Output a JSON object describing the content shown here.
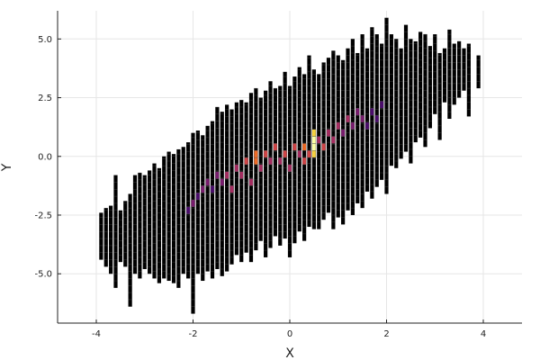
{
  "chart_data": {
    "type": "heatmap",
    "subtype": "2d-histogram",
    "title": "",
    "xlabel": "X",
    "ylabel": "Y",
    "xlim": [
      -4.8,
      4.8
    ],
    "ylim": [
      -7.1,
      6.2
    ],
    "x_ticks": [
      -4,
      -2,
      0,
      2,
      4
    ],
    "x_tick_labels": [
      "-4",
      "-2",
      "0",
      "2",
      "4"
    ],
    "y_ticks": [
      -5.0,
      -2.5,
      0.0,
      2.5,
      5.0
    ],
    "y_tick_labels": [
      "-5.0",
      "-2.5",
      "0.0",
      "2.5",
      "5.0"
    ],
    "grid": true,
    "legend": "none",
    "colormap": "inferno",
    "colormap_stops": [
      "#000004",
      "#1b0c41",
      "#4a0c6b",
      "#781c6d",
      "#a52c60",
      "#cf4446",
      "#ed6925",
      "#fb9b06",
      "#f7d13d",
      "#fcffa4"
    ],
    "bin_color": "#000000",
    "cell_border_color": "#555555",
    "x_bin_width": 0.1,
    "y_bin_height": 0.3,
    "columns": [
      {
        "x": -3.9,
        "ymin": -4.4,
        "ymax": -2.4
      },
      {
        "x": -3.8,
        "ymin": -4.7,
        "ymax": -2.2
      },
      {
        "x": -3.7,
        "ymin": -5.0,
        "ymax": -2.1
      },
      {
        "x": -3.6,
        "ymin": -5.6,
        "ymax": -0.8
      },
      {
        "x": -3.5,
        "ymin": -4.5,
        "ymax": -2.3
      },
      {
        "x": -3.4,
        "ymin": -4.7,
        "ymax": -1.9
      },
      {
        "x": -3.3,
        "ymin": -6.4,
        "ymax": -1.6
      },
      {
        "x": -3.2,
        "ymin": -5.0,
        "ymax": -0.8
      },
      {
        "x": -3.1,
        "ymin": -5.2,
        "ymax": -0.7
      },
      {
        "x": -3.0,
        "ymin": -4.8,
        "ymax": -0.8
      },
      {
        "x": -2.9,
        "ymin": -5.0,
        "ymax": -0.6
      },
      {
        "x": -2.8,
        "ymin": -5.2,
        "ymax": -0.3
      },
      {
        "x": -2.7,
        "ymin": -5.4,
        "ymax": -0.5
      },
      {
        "x": -2.6,
        "ymin": -5.2,
        "ymax": 0.0
      },
      {
        "x": -2.5,
        "ymin": -5.3,
        "ymax": 0.2
      },
      {
        "x": -2.4,
        "ymin": -5.4,
        "ymax": 0.1
      },
      {
        "x": -2.3,
        "ymin": -5.6,
        "ymax": 0.3
      },
      {
        "x": -2.2,
        "ymin": -5.0,
        "ymax": 0.4
      },
      {
        "x": -2.1,
        "ymin": -5.2,
        "ymax": 0.6
      },
      {
        "x": -2.0,
        "ymin": -6.7,
        "ymax": 1.0
      },
      {
        "x": -1.9,
        "ymin": -5.0,
        "ymax": 1.1
      },
      {
        "x": -1.8,
        "ymin": -5.3,
        "ymax": 0.9
      },
      {
        "x": -1.7,
        "ymin": -4.9,
        "ymax": 1.3
      },
      {
        "x": -1.6,
        "ymin": -5.2,
        "ymax": 1.5
      },
      {
        "x": -1.5,
        "ymin": -4.8,
        "ymax": 2.1
      },
      {
        "x": -1.4,
        "ymin": -5.1,
        "ymax": 1.9
      },
      {
        "x": -1.3,
        "ymin": -4.9,
        "ymax": 2.2
      },
      {
        "x": -1.2,
        "ymin": -4.6,
        "ymax": 2.0
      },
      {
        "x": -1.1,
        "ymin": -4.2,
        "ymax": 2.3
      },
      {
        "x": -1.0,
        "ymin": -4.5,
        "ymax": 2.4
      },
      {
        "x": -0.9,
        "ymin": -4.1,
        "ymax": 2.3
      },
      {
        "x": -0.8,
        "ymin": -4.5,
        "ymax": 2.7
      },
      {
        "x": -0.7,
        "ymin": -4.0,
        "ymax": 2.9
      },
      {
        "x": -0.6,
        "ymin": -3.6,
        "ymax": 2.5
      },
      {
        "x": -0.5,
        "ymin": -4.3,
        "ymax": 2.8
      },
      {
        "x": -0.4,
        "ymin": -3.9,
        "ymax": 3.2
      },
      {
        "x": -0.3,
        "ymin": -3.4,
        "ymax": 2.9
      },
      {
        "x": -0.2,
        "ymin": -3.8,
        "ymax": 3.0
      },
      {
        "x": -0.1,
        "ymin": -3.5,
        "ymax": 3.6
      },
      {
        "x": 0.0,
        "ymin": -4.3,
        "ymax": 3.0
      },
      {
        "x": 0.1,
        "ymin": -3.7,
        "ymax": 3.4
      },
      {
        "x": 0.2,
        "ymin": -3.2,
        "ymax": 3.8
      },
      {
        "x": 0.3,
        "ymin": -3.6,
        "ymax": 3.5
      },
      {
        "x": 0.4,
        "ymin": -3.0,
        "ymax": 4.3
      },
      {
        "x": 0.5,
        "ymin": -3.1,
        "ymax": 3.7
      },
      {
        "x": 0.6,
        "ymin": -3.1,
        "ymax": 3.5
      },
      {
        "x": 0.7,
        "ymin": -2.7,
        "ymax": 4.0
      },
      {
        "x": 0.8,
        "ymin": -2.4,
        "ymax": 4.2
      },
      {
        "x": 0.9,
        "ymin": -3.1,
        "ymax": 4.5
      },
      {
        "x": 1.0,
        "ymin": -2.6,
        "ymax": 4.3
      },
      {
        "x": 1.1,
        "ymin": -2.9,
        "ymax": 4.1
      },
      {
        "x": 1.2,
        "ymin": -2.3,
        "ymax": 4.6
      },
      {
        "x": 1.3,
        "ymin": -2.5,
        "ymax": 5.0
      },
      {
        "x": 1.4,
        "ymin": -2.0,
        "ymax": 4.4
      },
      {
        "x": 1.5,
        "ymin": -2.2,
        "ymax": 5.2
      },
      {
        "x": 1.6,
        "ymin": -1.5,
        "ymax": 4.6
      },
      {
        "x": 1.7,
        "ymin": -1.8,
        "ymax": 5.5
      },
      {
        "x": 1.8,
        "ymin": -1.3,
        "ymax": 5.2
      },
      {
        "x": 1.9,
        "ymin": -1.0,
        "ymax": 4.8
      },
      {
        "x": 2.0,
        "ymin": -1.6,
        "ymax": 5.9
      },
      {
        "x": 2.1,
        "ymin": -0.4,
        "ymax": 5.2
      },
      {
        "x": 2.2,
        "ymin": -0.5,
        "ymax": 5.0
      },
      {
        "x": 2.3,
        "ymin": -0.1,
        "ymax": 4.6
      },
      {
        "x": 2.4,
        "ymin": 0.2,
        "ymax": 5.6
      },
      {
        "x": 2.5,
        "ymin": -0.3,
        "ymax": 5.0
      },
      {
        "x": 2.6,
        "ymin": 0.6,
        "ymax": 4.9
      },
      {
        "x": 2.7,
        "ymin": 0.8,
        "ymax": 5.3
      },
      {
        "x": 2.8,
        "ymin": 0.4,
        "ymax": 5.2
      },
      {
        "x": 2.9,
        "ymin": 1.2,
        "ymax": 4.7
      },
      {
        "x": 3.0,
        "ymin": 1.8,
        "ymax": 5.2
      },
      {
        "x": 3.1,
        "ymin": 0.7,
        "ymax": 4.4
      },
      {
        "x": 3.2,
        "ymin": 2.3,
        "ymax": 4.6
      },
      {
        "x": 3.3,
        "ymin": 1.6,
        "ymax": 5.4
      },
      {
        "x": 3.4,
        "ymin": 2.2,
        "ymax": 4.8
      },
      {
        "x": 3.5,
        "ymin": 2.5,
        "ymax": 4.9
      },
      {
        "x": 3.6,
        "ymin": 2.8,
        "ymax": 4.6
      },
      {
        "x": 3.7,
        "ymin": 1.7,
        "ymax": 4.8
      },
      {
        "x": 3.9,
        "ymin": 2.9,
        "ymax": 4.3
      }
    ],
    "hot_cells": [
      {
        "x": -2.1,
        "y": -2.3,
        "level": 2
      },
      {
        "x": -2.0,
        "y": -2.0,
        "level": 3
      },
      {
        "x": -1.9,
        "y": -1.7,
        "level": 2
      },
      {
        "x": -1.8,
        "y": -1.4,
        "level": 3
      },
      {
        "x": -1.7,
        "y": -1.1,
        "level": 3
      },
      {
        "x": -1.6,
        "y": -1.4,
        "level": 2
      },
      {
        "x": -1.5,
        "y": -0.8,
        "level": 3
      },
      {
        "x": -1.4,
        "y": -1.1,
        "level": 3
      },
      {
        "x": -1.3,
        "y": -0.8,
        "level": 4
      },
      {
        "x": -1.2,
        "y": -1.4,
        "level": 4
      },
      {
        "x": -1.1,
        "y": -0.5,
        "level": 4
      },
      {
        "x": -1.0,
        "y": -0.8,
        "level": 4
      },
      {
        "x": -0.9,
        "y": -0.2,
        "level": 5
      },
      {
        "x": -0.8,
        "y": -1.1,
        "level": 4
      },
      {
        "x": -0.7,
        "y": -0.2,
        "level": 6
      },
      {
        "x": -0.7,
        "y": 0.1,
        "level": 6
      },
      {
        "x": -0.6,
        "y": -0.5,
        "level": 4
      },
      {
        "x": -0.5,
        "y": 0.1,
        "level": 5
      },
      {
        "x": -0.4,
        "y": -0.2,
        "level": 4
      },
      {
        "x": -0.3,
        "y": 0.4,
        "level": 5
      },
      {
        "x": -0.2,
        "y": -0.2,
        "level": 4
      },
      {
        "x": -0.1,
        "y": 0.1,
        "level": 5
      },
      {
        "x": 0.0,
        "y": -0.5,
        "level": 4
      },
      {
        "x": 0.1,
        "y": 0.4,
        "level": 5
      },
      {
        "x": 0.2,
        "y": 0.1,
        "level": 4
      },
      {
        "x": 0.3,
        "y": 0.4,
        "level": 6
      },
      {
        "x": 0.3,
        "y": -0.2,
        "level": 5
      },
      {
        "x": 0.4,
        "y": 0.1,
        "level": 5
      },
      {
        "x": 0.5,
        "y": 1.0,
        "level": 8
      },
      {
        "x": 0.5,
        "y": 0.4,
        "level": 9
      },
      {
        "x": 0.5,
        "y": 0.7,
        "level": 9
      },
      {
        "x": 0.5,
        "y": 0.1,
        "level": 8
      },
      {
        "x": 0.6,
        "y": 0.7,
        "level": 4
      },
      {
        "x": 0.7,
        "y": 0.4,
        "level": 5
      },
      {
        "x": 0.8,
        "y": 1.0,
        "level": 4
      },
      {
        "x": 0.9,
        "y": 0.7,
        "level": 4
      },
      {
        "x": 1.0,
        "y": 1.3,
        "level": 4
      },
      {
        "x": 1.1,
        "y": 1.0,
        "level": 3
      },
      {
        "x": 1.2,
        "y": 1.6,
        "level": 4
      },
      {
        "x": 1.3,
        "y": 1.3,
        "level": 3
      },
      {
        "x": 1.4,
        "y": 1.9,
        "level": 3
      },
      {
        "x": 1.5,
        "y": 1.6,
        "level": 3
      },
      {
        "x": 1.6,
        "y": 1.3,
        "level": 2
      },
      {
        "x": 1.7,
        "y": 1.9,
        "level": 2
      },
      {
        "x": 1.8,
        "y": 1.6,
        "level": 2
      },
      {
        "x": 1.9,
        "y": 2.2,
        "level": 2
      }
    ]
  }
}
